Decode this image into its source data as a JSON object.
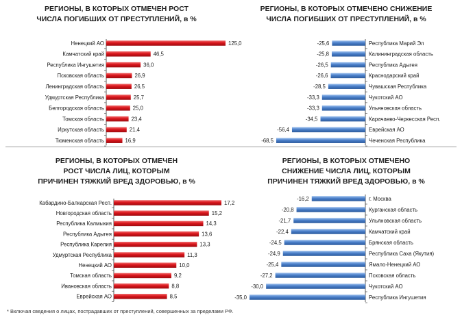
{
  "footnote": "* Включая сведения о лицах, пострадавших от преступлений, совершенных за пределами РФ.",
  "chart_data": [
    {
      "type": "bar",
      "orientation": "horizontal",
      "title": "РЕГИОНЫ, В КОТОРЫХ ОТМЕЧЕН РОСТ\nЧИСЛА ПОГИБШИХ ОТ ПРЕСТУПЛЕНИЙ, в %",
      "categories": [
        "Ненецкий АО",
        "Камчатский край",
        "Республика Ингушетия",
        "Псковская область",
        "Ленинградская область",
        "Удмуртская Республика",
        "Белгородская область",
        "Томская область",
        "Иркутская область",
        "Тюменская область"
      ],
      "values": [
        125.0,
        46.5,
        36.0,
        26.9,
        26.5,
        25.7,
        25.0,
        23.4,
        21.4,
        16.9
      ],
      "value_labels": [
        "125,0",
        "46,5",
        "36,0",
        "26,9",
        "26,5",
        "25,7",
        "25,0",
        "23,4",
        "21,4",
        "16,9"
      ],
      "color": "#d9151b",
      "xlim": [
        0,
        125
      ]
    },
    {
      "type": "bar",
      "orientation": "horizontal",
      "title": "РЕГИОНЫ, В КОТОРЫХ ОТМЕЧЕНО СНИЖЕНИЕ\nЧИСЛА ПОГИБШИХ ОТ ПРЕСТУПЛЕНИЙ, в %",
      "categories": [
        "Республика Марий Эл",
        "Калининградская область",
        "Республика Адыгея",
        "Краснодарский край",
        "Чувашская Республика",
        "Чукотский АО",
        "Ульяновская область",
        "Карачаево-Черкесская Респ.",
        "Еврейская АО",
        "Чеченская Республика"
      ],
      "values": [
        -25.6,
        -25.8,
        -26.5,
        -26.6,
        -28.5,
        -33.3,
        -33.3,
        -34.5,
        -56.4,
        -68.5
      ],
      "value_labels": [
        "-25,6",
        "-25,8",
        "-26,5",
        "-26,6",
        "-28,5",
        "-33,3",
        "-33,3",
        "-34,5",
        "-56,4",
        "-68,5"
      ],
      "color": "#4a7fc9",
      "xlim": [
        -68.5,
        0
      ]
    },
    {
      "type": "bar",
      "orientation": "horizontal",
      "title": "РЕГИОНЫ, В КОТОРЫХ ОТМЕЧЕН\nРОСТ ЧИСЛА ЛИЦ, КОТОРЫМ\nПРИЧИНЕН ТЯЖКИЙ ВРЕД ЗДОРОВЬЮ, в %",
      "categories": [
        "Кабардино-Балкарская Респ.",
        "Новгородская  область",
        "Республика Калмыкия",
        "Республика Адыгея",
        "Республика Карелия",
        "Удмуртская Республика",
        "Ненецкий АО",
        "Томская область",
        "Ивановская область",
        "Еврейская АО"
      ],
      "values": [
        17.2,
        15.2,
        14.3,
        13.6,
        13.3,
        11.3,
        10.0,
        9.2,
        8.8,
        8.5
      ],
      "value_labels": [
        "17,2",
        "15,2",
        "14,3",
        "13,6",
        "13,3",
        "11,3",
        "10,0",
        "9,2",
        "8,8",
        "8,5"
      ],
      "color": "#d9151b",
      "xlim": [
        0,
        17.2
      ]
    },
    {
      "type": "bar",
      "orientation": "horizontal",
      "title": "РЕГИОНЫ, В КОТОРЫХ ОТМЕЧЕНО\nСНИЖЕНИЕ ЧИСЛА ЛИЦ, КОТОРЫМ\nПРИЧИНЕН ТЯЖКИЙ ВРЕД ЗДОРОВЬЮ, в %",
      "categories": [
        "г. Москва",
        "Курганская область",
        "Ульяновская область",
        "Камчатский край",
        "Брянская область",
        "Республика Саха (Якутия)",
        "Ямало-Ненецкий АО",
        "Псковская область",
        "Чукотский АО",
        "Республика Ингушетия"
      ],
      "values": [
        -16.2,
        -20.8,
        -21.7,
        -22.4,
        -24.5,
        -24.9,
        -25.4,
        -27.2,
        -30.0,
        -35.0
      ],
      "value_labels": [
        "-16,2",
        "-20,8",
        "-21,7",
        "-22,4",
        "-24,5",
        "-24,9",
        "-25,4",
        "-27,2",
        "-30,0",
        "-35,0"
      ],
      "color": "#4a7fc9",
      "xlim": [
        -35.0,
        0
      ]
    }
  ]
}
